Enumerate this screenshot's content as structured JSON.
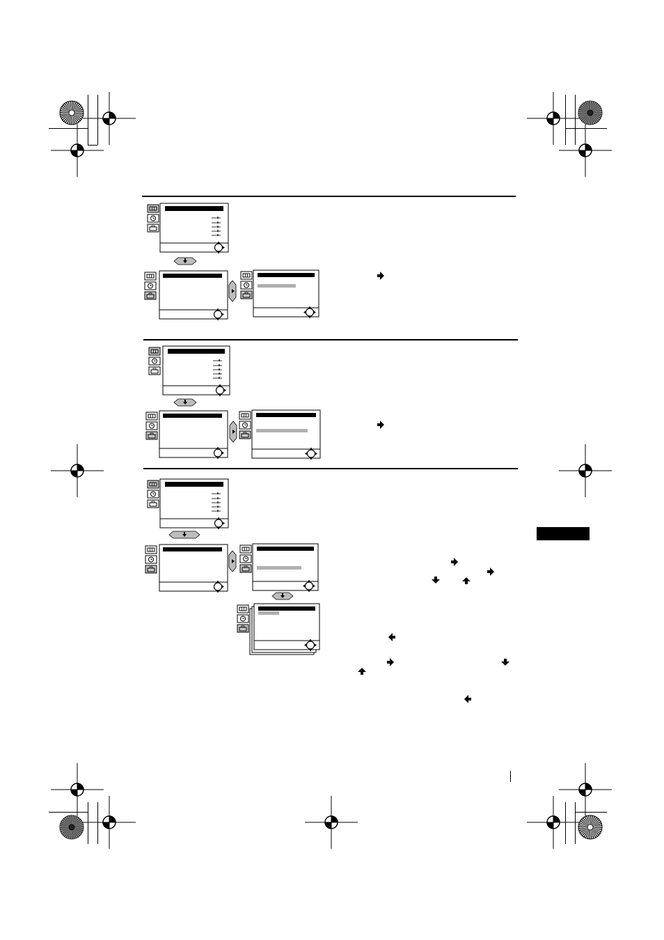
{
  "page": {
    "sections": [
      {
        "id": "section-1",
        "diagrams": [
          "main-menu",
          "submenu-list",
          "submenu-detail"
        ]
      },
      {
        "id": "section-2",
        "diagrams": [
          "main-menu",
          "submenu-list",
          "submenu-detail"
        ]
      },
      {
        "id": "section-3",
        "diagrams": [
          "main-menu",
          "submenu-list",
          "submenu-detail",
          "submenu-detail-stacked"
        ]
      }
    ],
    "icons": [
      "menu-tab-picture-icon",
      "menu-tab-timer-icon",
      "menu-tab-setup-icon",
      "joystick-icon",
      "down-arrow-button-icon",
      "right-arrow-icon",
      "left-arrow-icon",
      "up-arrow-icon",
      "down-arrow-icon",
      "registration-mark-icon",
      "starburst-target-icon"
    ],
    "colors": {
      "ink": "#000000",
      "paper": "#ffffff",
      "highlight": "#b0b0b0",
      "button_fill": "#bdbdbd"
    }
  }
}
